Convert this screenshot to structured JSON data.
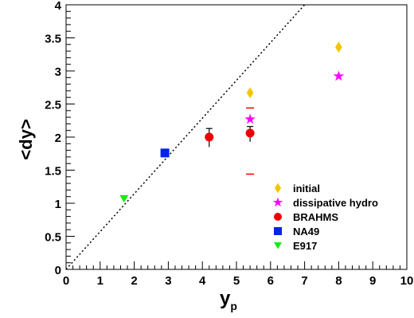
{
  "chart_data": {
    "type": "scatter",
    "xlabel": "y",
    "xlabel_sub": "p",
    "ylabel": "<dy>",
    "xlim": [
      0,
      10
    ],
    "ylim": [
      0,
      4
    ],
    "x_ticks": [
      "0",
      "1",
      "2",
      "3",
      "4",
      "5",
      "6",
      "7",
      "8",
      "9",
      "10"
    ],
    "y_ticks": [
      "0",
      "0.5",
      "1",
      "1.5",
      "2",
      "2.5",
      "3",
      "3.5",
      "4"
    ],
    "grid": false,
    "legend_position": "bottom-right",
    "reference_line": {
      "style": "dotted",
      "points": [
        [
          0,
          0
        ],
        [
          7,
          4
        ]
      ]
    },
    "series": [
      {
        "name": "initial",
        "marker": "diamond",
        "color": "#f5c400",
        "points": [
          {
            "x": 5.4,
            "y": 2.67
          },
          {
            "x": 8.0,
            "y": 3.36
          }
        ]
      },
      {
        "name": "dissipative hydro",
        "marker": "star",
        "color": "#ff00ff",
        "points": [
          {
            "x": 5.4,
            "y": 2.27
          },
          {
            "x": 8.0,
            "y": 2.92
          }
        ]
      },
      {
        "name": "BRAHMS",
        "marker": "circle",
        "color": "#ee0000",
        "points": [
          {
            "x": 4.2,
            "y": 2.0,
            "err_low": 0.15,
            "err_high": 0.13
          },
          {
            "x": 5.4,
            "y": 2.06,
            "err_low": 0.13,
            "err_high": 0.1
          }
        ]
      },
      {
        "name": "NA49",
        "marker": "square",
        "color": "#0022ee",
        "points": [
          {
            "x": 2.9,
            "y": 1.76
          }
        ]
      },
      {
        "name": "E917",
        "marker": "triangle-down",
        "color": "#11ee11",
        "points": [
          {
            "x": 1.7,
            "y": 1.07
          }
        ]
      }
    ],
    "annotations": [
      {
        "type": "hline",
        "x": 5.4,
        "y": 2.44,
        "color": "#ee0000"
      },
      {
        "type": "hline",
        "x": 5.4,
        "y": 1.44,
        "color": "#ee0000"
      }
    ]
  }
}
